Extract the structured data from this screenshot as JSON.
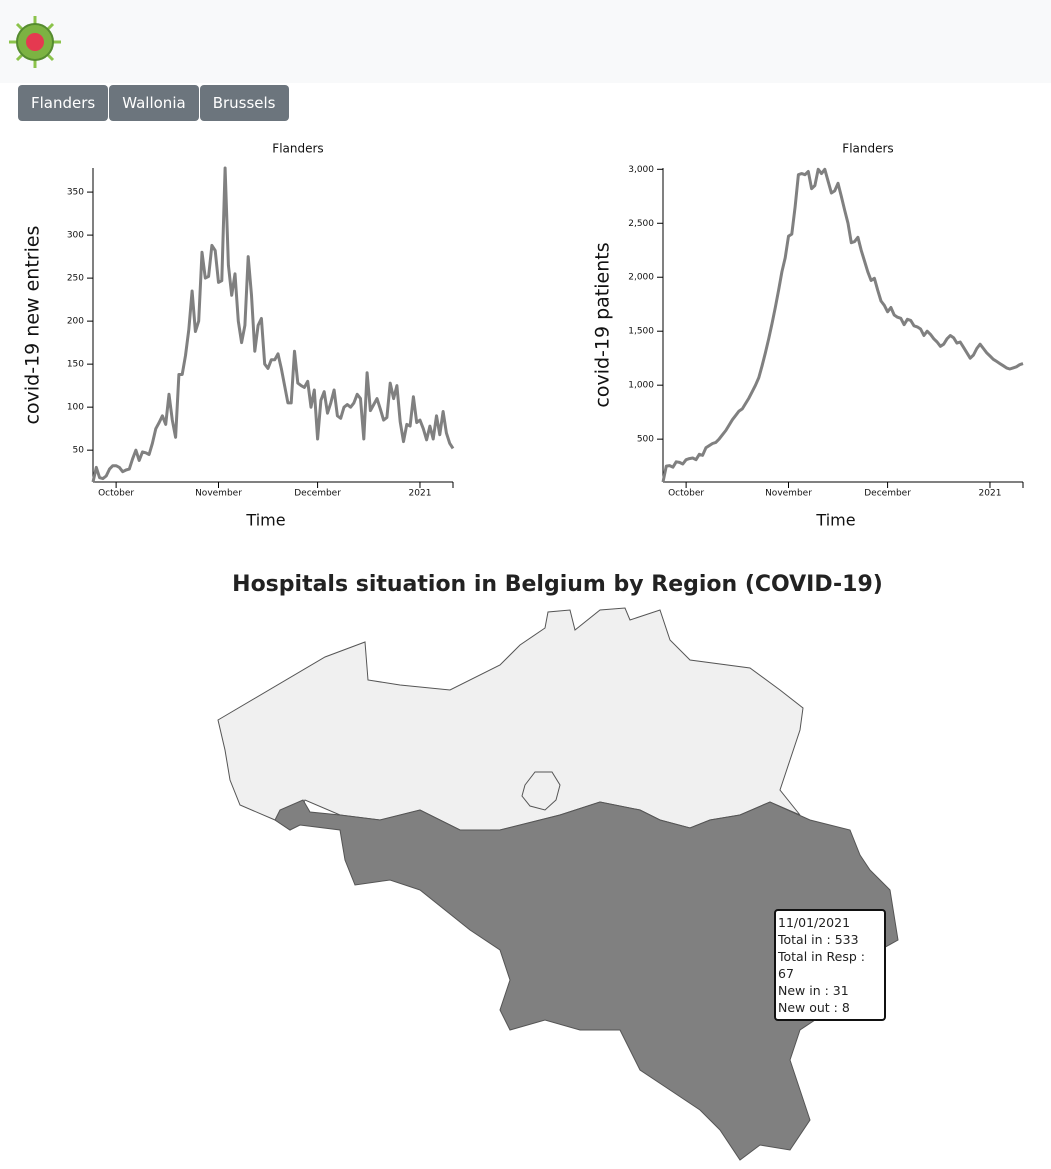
{
  "buttons": [
    "Flanders",
    "Wallonia",
    "Brussels"
  ],
  "map": {
    "title": "Hospitals situation in Belgium by Region (COVID-19)"
  },
  "tooltip": {
    "lines": [
      "11/01/2021",
      "Total in : 533",
      "Total in Resp : 67",
      "New in : 31",
      "New out : 8"
    ]
  },
  "chart_data": [
    {
      "type": "line",
      "title": "Flanders",
      "x_label": "Time",
      "y_label": "covid-19 new entries",
      "color": "#808080",
      "x": [
        "2020-09-24",
        "2020-09-25",
        "2020-09-26",
        "2020-09-27",
        "2020-09-28",
        "2020-09-29",
        "2020-09-30",
        "2020-10-01",
        "2020-10-02",
        "2020-10-03",
        "2020-10-04",
        "2020-10-05",
        "2020-10-06",
        "2020-10-07",
        "2020-10-08",
        "2020-10-09",
        "2020-10-10",
        "2020-10-11",
        "2020-10-12",
        "2020-10-13",
        "2020-10-14",
        "2020-10-15",
        "2020-10-16",
        "2020-10-17",
        "2020-10-18",
        "2020-10-19",
        "2020-10-20",
        "2020-10-21",
        "2020-10-22",
        "2020-10-23",
        "2020-10-24",
        "2020-10-25",
        "2020-10-26",
        "2020-10-27",
        "2020-10-28",
        "2020-10-29",
        "2020-10-30",
        "2020-10-31",
        "2020-11-01",
        "2020-11-02",
        "2020-11-03",
        "2020-11-04",
        "2020-11-05",
        "2020-11-06",
        "2020-11-07",
        "2020-11-08",
        "2020-11-09",
        "2020-11-10",
        "2020-11-11",
        "2020-11-12",
        "2020-11-13",
        "2020-11-14",
        "2020-11-15",
        "2020-11-16",
        "2020-11-17",
        "2020-11-18",
        "2020-11-19",
        "2020-11-20",
        "2020-11-21",
        "2020-11-22",
        "2020-11-23",
        "2020-11-24",
        "2020-11-25",
        "2020-11-26",
        "2020-11-27",
        "2020-11-28",
        "2020-11-29",
        "2020-11-30",
        "2020-12-01",
        "2020-12-02",
        "2020-12-03",
        "2020-12-04",
        "2020-12-05",
        "2020-12-06",
        "2020-12-07",
        "2020-12-08",
        "2020-12-09",
        "2020-12-10",
        "2020-12-11",
        "2020-12-12",
        "2020-12-13",
        "2020-12-14",
        "2020-12-15",
        "2020-12-16",
        "2020-12-17",
        "2020-12-18",
        "2020-12-19",
        "2020-12-20",
        "2020-12-21",
        "2020-12-22",
        "2020-12-23",
        "2020-12-24",
        "2020-12-25",
        "2020-12-26",
        "2020-12-27",
        "2020-12-28",
        "2020-12-29",
        "2020-12-30",
        "2020-12-31",
        "2021-01-01",
        "2021-01-02",
        "2021-01-03",
        "2021-01-04",
        "2021-01-05",
        "2021-01-06",
        "2021-01-07",
        "2021-01-08",
        "2021-01-09",
        "2021-01-10",
        "2021-01-11"
      ],
      "values": [
        13,
        30,
        18,
        17,
        20,
        28,
        32,
        32,
        30,
        25,
        27,
        28,
        40,
        50,
        38,
        48,
        47,
        45,
        58,
        75,
        82,
        90,
        80,
        115,
        85,
        65,
        138,
        138,
        160,
        190,
        235,
        188,
        200,
        280,
        250,
        252,
        288,
        282,
        245,
        247,
        378,
        265,
        230,
        255,
        200,
        175,
        195,
        275,
        230,
        165,
        195,
        203,
        150,
        145,
        155,
        155,
        162,
        145,
        125,
        105,
        105,
        165,
        128,
        125,
        123,
        130,
        100,
        120,
        63,
        108,
        118,
        93,
        105,
        120,
        90,
        87,
        100,
        103,
        100,
        105,
        115,
        110,
        63,
        140,
        96,
        103,
        110,
        98,
        85,
        88,
        128,
        110,
        125,
        83,
        60,
        80,
        78,
        112,
        82,
        85,
        75,
        62,
        78,
        63,
        90,
        68,
        95,
        70,
        58,
        52
      ],
      "xlim": [
        "2020-09-24",
        "2021-01-11"
      ],
      "xticks": [
        {
          "value": "2020-10-01",
          "label": "October"
        },
        {
          "value": "2020-11-01",
          "label": "November"
        },
        {
          "value": "2020-12-01",
          "label": "December"
        },
        {
          "value": "2021-01-01",
          "label": "2021"
        }
      ],
      "ylim": [
        13,
        378
      ],
      "yticks": [
        50,
        100,
        150,
        200,
        250,
        300,
        350
      ]
    },
    {
      "type": "line",
      "title": "Flanders",
      "x_label": "Time",
      "y_label": "covid-19 patients",
      "color": "#808080",
      "x": [
        "2020-09-24",
        "2020-09-25",
        "2020-09-26",
        "2020-09-27",
        "2020-09-28",
        "2020-09-29",
        "2020-09-30",
        "2020-10-01",
        "2020-10-02",
        "2020-10-03",
        "2020-10-04",
        "2020-10-05",
        "2020-10-06",
        "2020-10-07",
        "2020-10-08",
        "2020-10-09",
        "2020-10-10",
        "2020-10-11",
        "2020-10-12",
        "2020-10-13",
        "2020-10-14",
        "2020-10-15",
        "2020-10-16",
        "2020-10-17",
        "2020-10-18",
        "2020-10-19",
        "2020-10-20",
        "2020-10-21",
        "2020-10-22",
        "2020-10-23",
        "2020-10-24",
        "2020-10-25",
        "2020-10-26",
        "2020-10-27",
        "2020-10-28",
        "2020-10-29",
        "2020-10-30",
        "2020-10-31",
        "2020-11-01",
        "2020-11-02",
        "2020-11-03",
        "2020-11-04",
        "2020-11-05",
        "2020-11-06",
        "2020-11-07",
        "2020-11-08",
        "2020-11-09",
        "2020-11-10",
        "2020-11-11",
        "2020-11-12",
        "2020-11-13",
        "2020-11-14",
        "2020-11-15",
        "2020-11-16",
        "2020-11-17",
        "2020-11-18",
        "2020-11-19",
        "2020-11-20",
        "2020-11-21",
        "2020-11-22",
        "2020-11-23",
        "2020-11-24",
        "2020-11-25",
        "2020-11-26",
        "2020-11-27",
        "2020-11-28",
        "2020-11-29",
        "2020-11-30",
        "2020-12-01",
        "2020-12-02",
        "2020-12-03",
        "2020-12-04",
        "2020-12-05",
        "2020-12-06",
        "2020-12-07",
        "2020-12-08",
        "2020-12-09",
        "2020-12-10",
        "2020-12-11",
        "2020-12-12",
        "2020-12-13",
        "2020-12-14",
        "2020-12-15",
        "2020-12-16",
        "2020-12-17",
        "2020-12-18",
        "2020-12-19",
        "2020-12-20",
        "2020-12-21",
        "2020-12-22",
        "2020-12-23",
        "2020-12-24",
        "2020-12-25",
        "2020-12-26",
        "2020-12-27",
        "2020-12-28",
        "2020-12-29",
        "2020-12-30",
        "2020-12-31",
        "2021-01-01",
        "2021-01-02",
        "2021-01-03",
        "2021-01-04",
        "2021-01-05",
        "2021-01-06",
        "2021-01-07",
        "2021-01-08",
        "2021-01-09",
        "2021-01-10",
        "2021-01-11"
      ],
      "values": [
        103,
        250,
        255,
        240,
        290,
        285,
        270,
        310,
        320,
        325,
        310,
        360,
        350,
        420,
        440,
        460,
        470,
        500,
        540,
        580,
        630,
        680,
        720,
        760,
        780,
        830,
        880,
        940,
        1000,
        1070,
        1180,
        1300,
        1430,
        1570,
        1720,
        1880,
        2050,
        2180,
        2380,
        2400,
        2650,
        2950,
        2960,
        2950,
        2980,
        2820,
        2850,
        3000,
        2960,
        3000,
        2890,
        2780,
        2800,
        2870,
        2750,
        2620,
        2500,
        2320,
        2330,
        2370,
        2250,
        2150,
        2050,
        1970,
        1990,
        1880,
        1780,
        1740,
        1680,
        1720,
        1650,
        1630,
        1620,
        1560,
        1610,
        1600,
        1550,
        1540,
        1520,
        1460,
        1500,
        1470,
        1430,
        1400,
        1360,
        1380,
        1430,
        1460,
        1440,
        1390,
        1400,
        1350,
        1300,
        1250,
        1280,
        1340,
        1380,
        1340,
        1300,
        1270,
        1240,
        1220,
        1200,
        1180,
        1160,
        1150,
        1160,
        1170,
        1190,
        1200
      ],
      "xlim": [
        "2020-09-24",
        "2021-01-11"
      ],
      "xticks": [
        {
          "value": "2020-10-01",
          "label": "October"
        },
        {
          "value": "2020-11-01",
          "label": "November"
        },
        {
          "value": "2020-12-01",
          "label": "December"
        },
        {
          "value": "2021-01-01",
          "label": "2021"
        }
      ],
      "ylim": [
        103,
        3012
      ],
      "yticks": [
        {
          "value": 500,
          "label": "500"
        },
        {
          "value": 1000,
          "label": "1,000"
        },
        {
          "value": 1500,
          "label": "1,500"
        },
        {
          "value": 2000,
          "label": "2,000"
        },
        {
          "value": 2500,
          "label": "2,500"
        },
        {
          "value": 3000,
          "label": "3,000"
        }
      ]
    }
  ]
}
